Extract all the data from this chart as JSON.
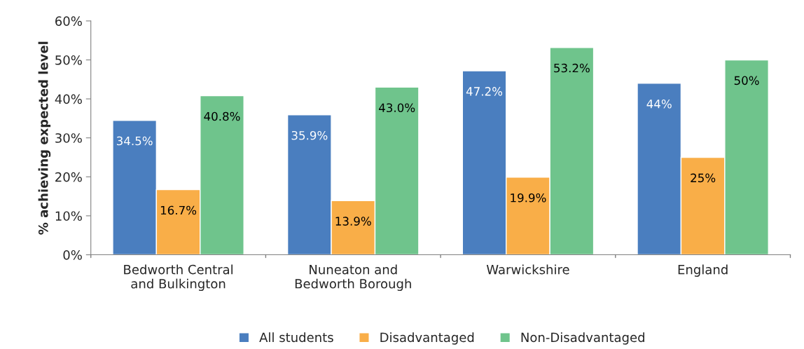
{
  "chart_data": {
    "type": "bar",
    "ylabel": "% achieving expected level",
    "categories": [
      "Bedworth Central\nand Bulkington",
      "Nuneaton and\nBedworth Borough",
      "Warwickshire",
      "England"
    ],
    "series": [
      {
        "name": "All students",
        "color": "#4a7ebf",
        "values": [
          34.5,
          35.9,
          47.2,
          44
        ],
        "value_labels": [
          "34.5%",
          "35.9%",
          "47.2%",
          "44%"
        ]
      },
      {
        "name": "Disadvantaged",
        "color": "#f9ae48",
        "values": [
          16.7,
          13.9,
          19.9,
          25
        ],
        "value_labels": [
          "16.7%",
          "13.9%",
          "19.9%",
          "25%"
        ]
      },
      {
        "name": "Non-Disadvantaged",
        "color": "#6fc48c",
        "values": [
          40.8,
          43.0,
          53.2,
          50
        ],
        "value_labels": [
          "40.8%",
          "43.0%",
          "53.2%",
          "50%"
        ]
      }
    ],
    "ylim": [
      0,
      60
    ],
    "yticks": [
      {
        "value": 0,
        "label": "0%"
      },
      {
        "value": 10,
        "label": "10%"
      },
      {
        "value": 20,
        "label": "20%"
      },
      {
        "value": 30,
        "label": "30%"
      },
      {
        "value": 40,
        "label": "40%"
      },
      {
        "value": 50,
        "label": "50%"
      },
      {
        "value": 60,
        "label": "60%"
      }
    ],
    "grid": false,
    "legend": "bottom"
  }
}
